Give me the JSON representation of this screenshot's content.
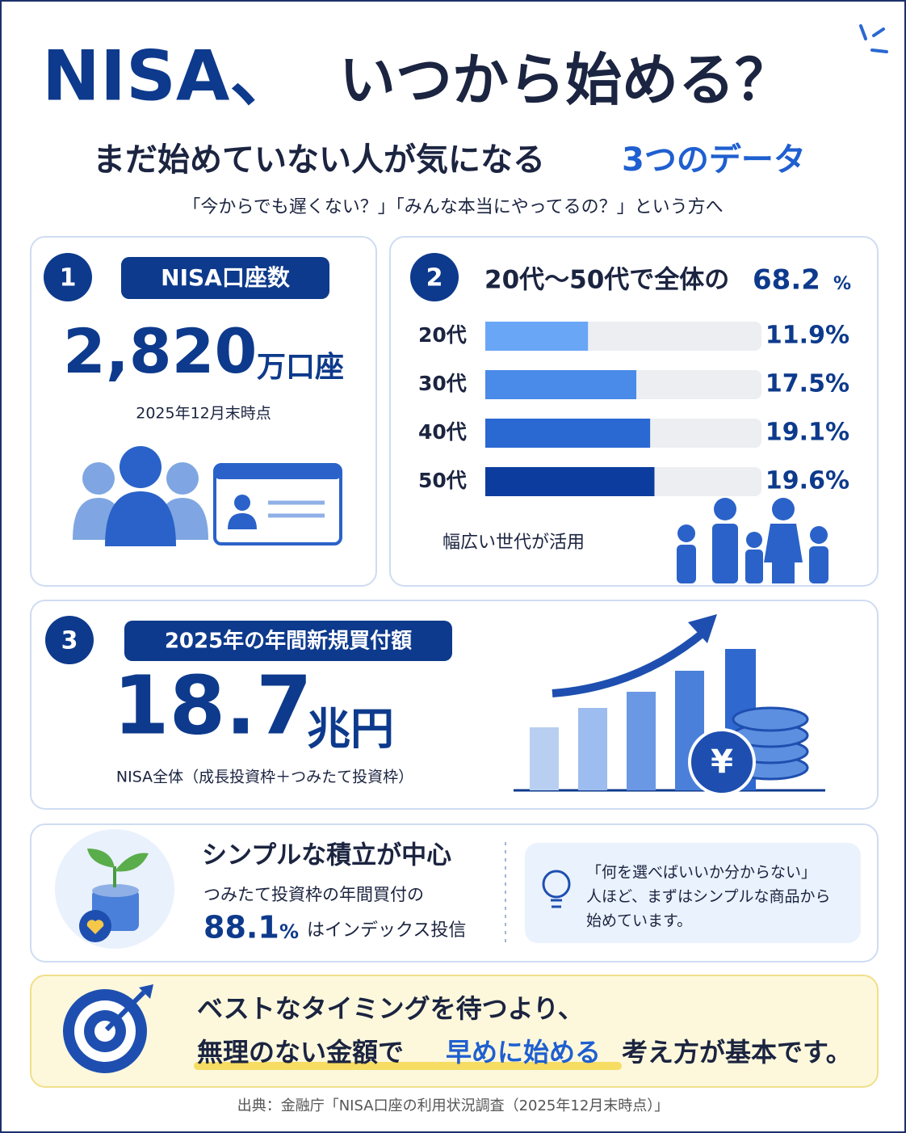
{
  "header": {
    "title_main": "NISA、",
    "title_rest": "いつから始める？",
    "subtitle_main": "まだ始めていない人が気になる",
    "subtitle_accent": "3つのデータ",
    "lead": "「今からでも遅くない？」「みんな本当にやってるの？」という方へ"
  },
  "card1": {
    "number": "1",
    "label": "NISA口座数",
    "value": "2,820",
    "unit": "万口座",
    "note": "2025年12月末時点"
  },
  "card2": {
    "number": "2",
    "heading": "20代〜50代で全体の",
    "heading_value": "68.2",
    "heading_unit": "%",
    "note": "幅広い世代が活用"
  },
  "chart_data": {
    "type": "hbar",
    "categories": [
      "20代",
      "30代",
      "40代",
      "50代"
    ],
    "values": [
      11.9,
      17.5,
      19.1,
      19.6
    ],
    "value_labels": [
      "11.9%",
      "17.5%",
      "19.1%",
      "19.6%"
    ],
    "colors": [
      "#6aa6f6",
      "#4a8ae8",
      "#2a68d2",
      "#0c3d9e"
    ],
    "xlim": [
      0,
      32
    ]
  },
  "card3": {
    "number": "3",
    "label": "2025年の年間新規買付額",
    "value": "18.7",
    "unit": "兆円",
    "note": "NISA全体（成長投資枠＋つみたて投資枠）"
  },
  "card4": {
    "heading": "シンプルな積立が中心",
    "line1": "つみたて投資枠の年間買付の",
    "value": "88.1",
    "unit": "%",
    "line2": "はインデックス投信",
    "tip": [
      "「何を選べばいいか分からない」",
      "人ほど、まずはシンプルな商品から",
      "始めています。"
    ]
  },
  "card5": {
    "line1": "ベストなタイミングを待つより、",
    "line2_a": "無理のない金額で",
    "line2_b": "早めに始める",
    "line2_c": "考え方が基本です。"
  },
  "footer": {
    "source": "出典：金融庁「NISA口座の利用状況調査（2025年12月末時点）」"
  }
}
